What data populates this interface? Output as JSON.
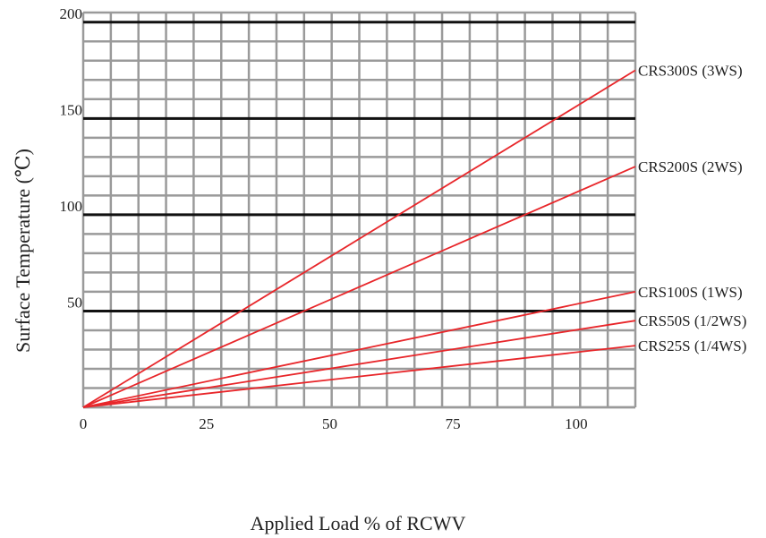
{
  "chart_data": {
    "type": "line",
    "title": "",
    "xlabel": "Applied Load % of RCWV",
    "ylabel": "Surface Temperature (℃)",
    "xlim": [
      0,
      112
    ],
    "ylim": [
      0,
      205
    ],
    "xticks": [
      0,
      25,
      50,
      75,
      100
    ],
    "xtick_labels": [
      "0",
      "25",
      "50",
      "75",
      "100"
    ],
    "yticks": [
      50,
      100,
      150,
      200
    ],
    "ytick_labels": [
      "50",
      "100",
      "150",
      "200"
    ],
    "minor_x_step": 5.6,
    "minor_y_step": 10,
    "major_y_lines": [
      50,
      100,
      150,
      200
    ],
    "grid": true,
    "legend": "series labels at right end of lines",
    "colors": {
      "series_line": "#e8262a",
      "grid_minor": "#9a9a9a",
      "grid_major": "#111111"
    },
    "series": [
      {
        "name": "CRS300S (3WS)",
        "x": [
          0,
          112
        ],
        "y": [
          0,
          175
        ]
      },
      {
        "name": "CRS200S (2WS)",
        "x": [
          0,
          112
        ],
        "y": [
          0,
          125
        ]
      },
      {
        "name": "CRS100S (1WS)",
        "x": [
          0,
          112
        ],
        "y": [
          0,
          60
        ]
      },
      {
        "name": "CRS50S (1/2WS)",
        "x": [
          0,
          112
        ],
        "y": [
          0,
          45
        ]
      },
      {
        "name": "CRS25S (1/4WS)",
        "x": [
          0,
          112
        ],
        "y": [
          0,
          32
        ]
      }
    ]
  }
}
